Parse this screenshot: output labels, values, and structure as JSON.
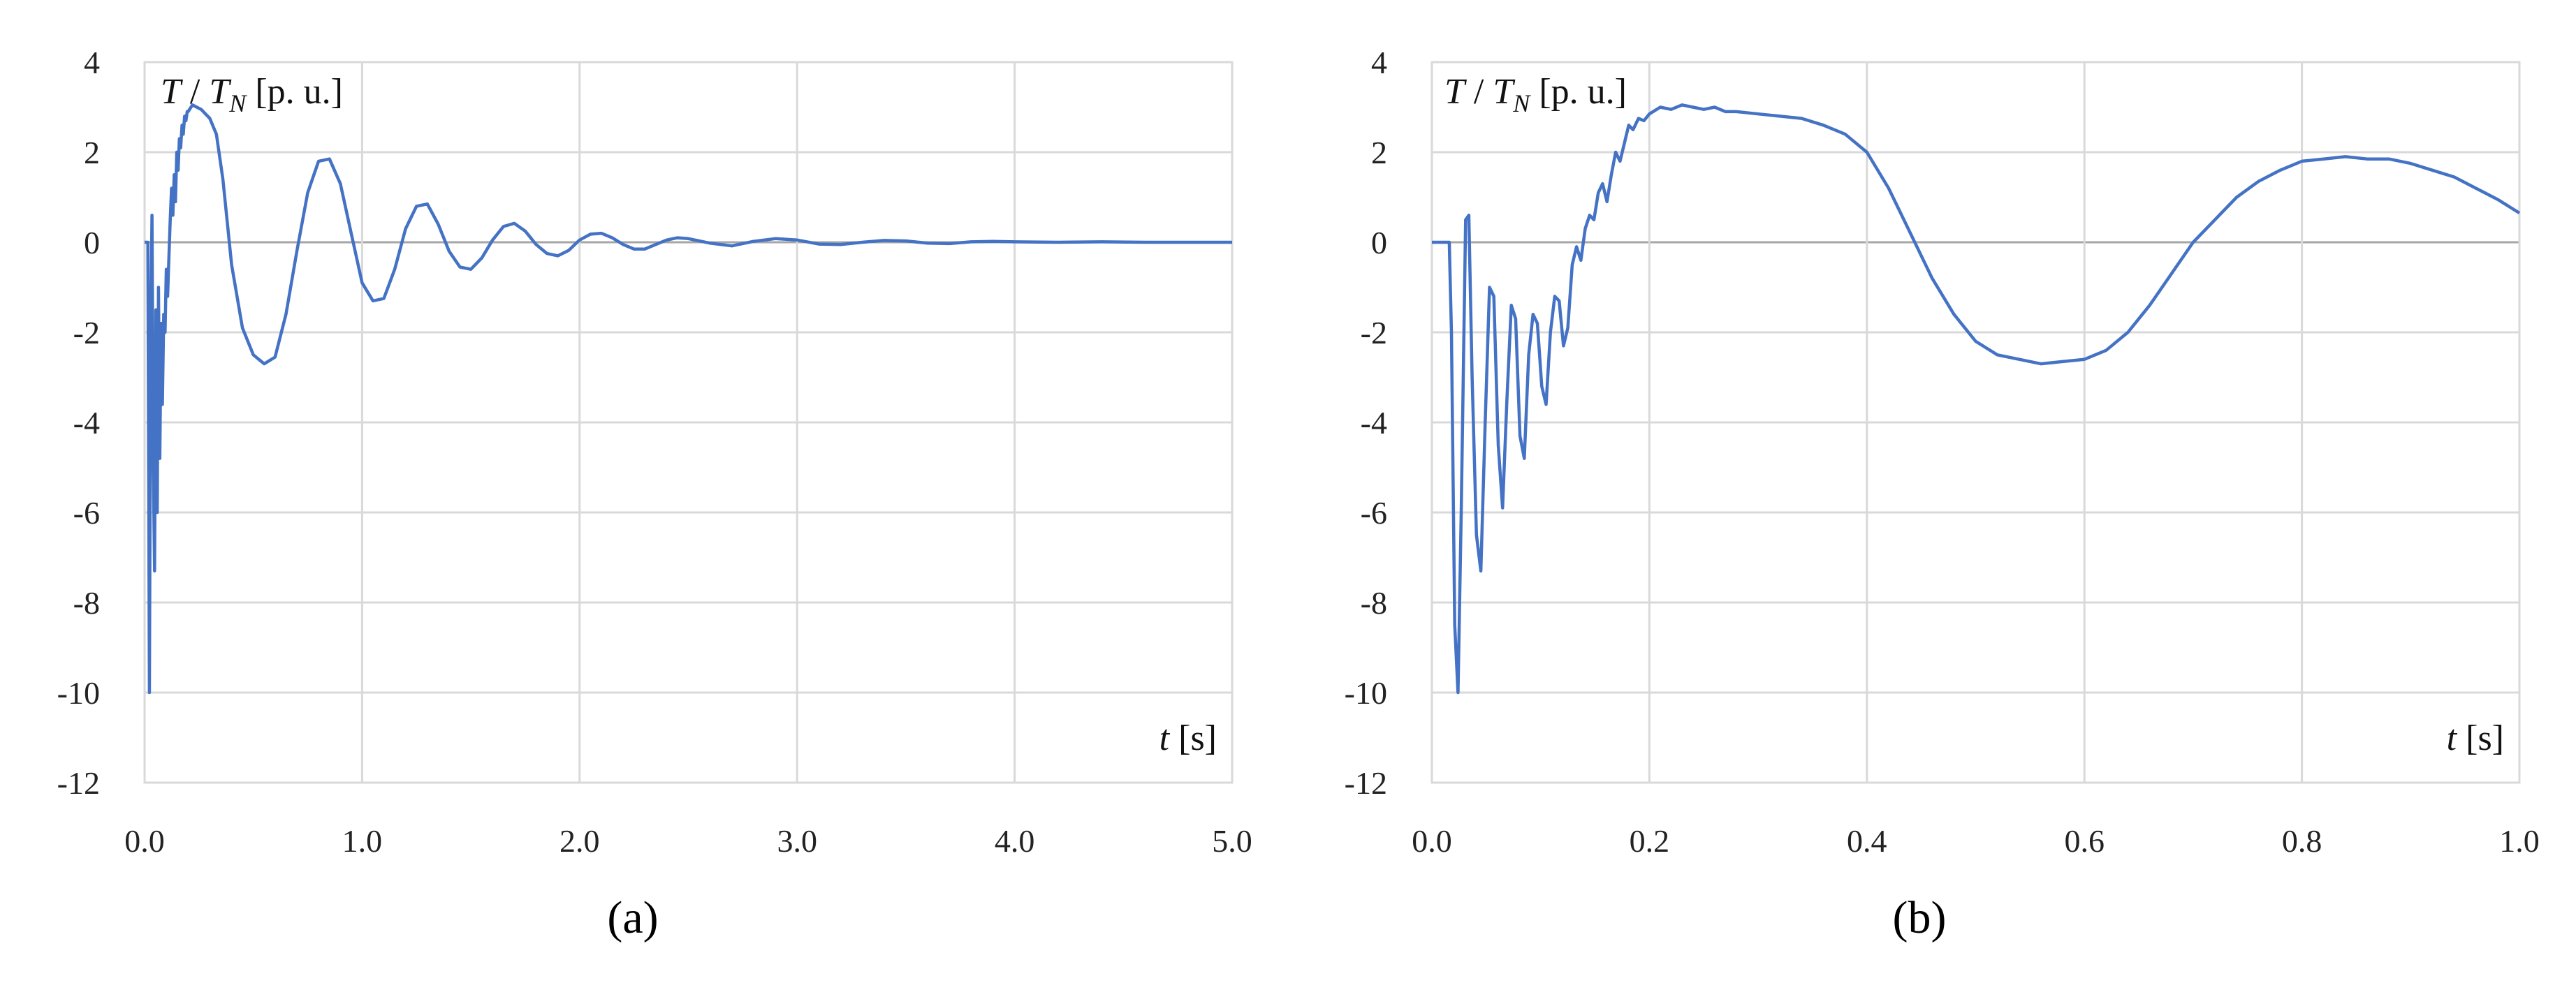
{
  "chart_data": [
    {
      "type": "line",
      "panel_label": "(a)",
      "ylabel": "T / T_N [p. u.]",
      "ylabel_parts": {
        "t": "T",
        "slash": " / ",
        "tn": "T",
        "sub": "N",
        "unit": " [p. u.]"
      },
      "xlabel": "t [s]",
      "xlabel_parts": {
        "var": "t",
        "unit": " [s]"
      },
      "xlim": [
        0,
        5
      ],
      "ylim": [
        -12,
        4
      ],
      "xticks": [
        "0.0",
        "1.0",
        "2.0",
        "3.0",
        "4.0",
        "5.0"
      ],
      "xtick_values": [
        0,
        1,
        2,
        3,
        4,
        5
      ],
      "yticks": [
        "4",
        "2",
        "0",
        "-2",
        "-4",
        "-6",
        "-8",
        "-10",
        "-12"
      ],
      "ytick_values": [
        4,
        2,
        0,
        -2,
        -4,
        -6,
        -8,
        -10,
        -12
      ],
      "grid": true,
      "legend": "none",
      "series": [
        {
          "x": [
            0,
            0.015,
            0.022,
            0.028,
            0.034,
            0.04,
            0.046,
            0.052,
            0.058,
            0.064,
            0.07,
            0.076,
            0.082,
            0.088,
            0.094,
            0.1,
            0.106,
            0.112,
            0.118,
            0.124,
            0.13,
            0.136,
            0.142,
            0.148,
            0.154,
            0.16,
            0.166,
            0.172,
            0.178,
            0.184,
            0.19,
            0.196,
            0.2,
            0.22,
            0.24,
            0.26,
            0.28,
            0.3,
            0.33,
            0.36,
            0.4,
            0.45,
            0.5,
            0.55,
            0.6,
            0.65,
            0.7,
            0.75,
            0.8,
            0.85,
            0.9,
            0.95,
            1.0,
            1.05,
            1.1,
            1.15,
            1.2,
            1.25,
            1.3,
            1.35,
            1.4,
            1.45,
            1.5,
            1.55,
            1.6,
            1.65,
            1.7,
            1.75,
            1.8,
            1.85,
            1.9,
            1.95,
            2.0,
            2.05,
            2.1,
            2.15,
            2.2,
            2.25,
            2.3,
            2.35,
            2.4,
            2.45,
            2.5,
            2.6,
            2.7,
            2.8,
            2.9,
            3.0,
            3.1,
            3.2,
            3.3,
            3.4,
            3.5,
            3.6,
            3.7,
            3.8,
            3.9,
            4.0,
            4.2,
            4.4,
            4.6,
            4.8,
            5.0
          ],
          "values": [
            0,
            0,
            -10,
            -2,
            0.6,
            -5,
            -7.3,
            -1.5,
            -6,
            -1,
            -4.8,
            -1.8,
            -3.6,
            -1.6,
            -2.0,
            -0.6,
            -1.2,
            -0.3,
            0.5,
            1.2,
            0.6,
            1.5,
            0.9,
            2.0,
            1.6,
            2.3,
            2.1,
            2.6,
            2.4,
            2.8,
            2.7,
            2.9,
            2.9,
            3.05,
            3.0,
            2.95,
            2.85,
            2.75,
            2.4,
            1.4,
            -0.5,
            -1.9,
            -2.5,
            -2.7,
            -2.55,
            -1.6,
            -0.2,
            1.1,
            1.8,
            1.85,
            1.3,
            0.2,
            -0.9,
            -1.3,
            -1.25,
            -0.6,
            0.3,
            0.8,
            0.85,
            0.4,
            -0.2,
            -0.55,
            -0.6,
            -0.35,
            0.05,
            0.35,
            0.42,
            0.25,
            -0.05,
            -0.25,
            -0.3,
            -0.18,
            0.05,
            0.18,
            0.2,
            0.1,
            -0.05,
            -0.15,
            -0.15,
            -0.05,
            0.05,
            0.1,
            0.08,
            -0.02,
            -0.08,
            0.02,
            0.08,
            0.05,
            -0.04,
            -0.05,
            0.0,
            0.04,
            0.03,
            -0.02,
            -0.03,
            0.01,
            0.02,
            0.01,
            0.0,
            0.01,
            0.0,
            0.0,
            0.0
          ]
        }
      ]
    },
    {
      "type": "line",
      "panel_label": "(b)",
      "ylabel": "T / T_N [p. u.]",
      "ylabel_parts": {
        "t": "T",
        "slash": " / ",
        "tn": "T",
        "sub": "N",
        "unit": " [p. u.]"
      },
      "xlabel": "t [s]",
      "xlabel_parts": {
        "var": "t",
        "unit": " [s]"
      },
      "xlim": [
        0,
        1
      ],
      "ylim": [
        -12,
        4
      ],
      "xticks": [
        "0.0",
        "0.2",
        "0.4",
        "0.6",
        "0.8",
        "1.0"
      ],
      "xtick_values": [
        0,
        0.2,
        0.4,
        0.6,
        0.8,
        1.0
      ],
      "yticks": [
        "4",
        "2",
        "0",
        "-2",
        "-4",
        "-6",
        "-8",
        "-10",
        "-12"
      ],
      "ytick_values": [
        4,
        2,
        0,
        -2,
        -4,
        -6,
        -8,
        -10,
        -12
      ],
      "grid": true,
      "legend": "none",
      "series": [
        {
          "x": [
            0,
            0.016,
            0.018,
            0.021,
            0.024,
            0.027,
            0.031,
            0.034,
            0.037,
            0.041,
            0.045,
            0.049,
            0.053,
            0.057,
            0.061,
            0.065,
            0.069,
            0.073,
            0.077,
            0.081,
            0.085,
            0.089,
            0.093,
            0.097,
            0.101,
            0.105,
            0.109,
            0.113,
            0.117,
            0.121,
            0.125,
            0.129,
            0.133,
            0.137,
            0.141,
            0.145,
            0.149,
            0.153,
            0.157,
            0.161,
            0.165,
            0.169,
            0.173,
            0.177,
            0.181,
            0.185,
            0.19,
            0.195,
            0.2,
            0.21,
            0.22,
            0.23,
            0.24,
            0.25,
            0.26,
            0.27,
            0.28,
            0.3,
            0.32,
            0.34,
            0.36,
            0.38,
            0.4,
            0.42,
            0.44,
            0.46,
            0.48,
            0.5,
            0.52,
            0.54,
            0.56,
            0.58,
            0.6,
            0.62,
            0.64,
            0.66,
            0.68,
            0.7,
            0.72,
            0.74,
            0.76,
            0.78,
            0.8,
            0.82,
            0.84,
            0.86,
            0.88,
            0.9,
            0.92,
            0.94,
            0.96,
            0.98,
            1.0
          ],
          "values": [
            0,
            0,
            -2,
            -8.5,
            -10,
            -6,
            0.5,
            0.6,
            -3,
            -6.5,
            -7.3,
            -4,
            -1,
            -1.2,
            -4.5,
            -5.9,
            -3.5,
            -1.4,
            -1.7,
            -4.3,
            -4.8,
            -2.5,
            -1.6,
            -1.8,
            -3.2,
            -3.6,
            -2.0,
            -1.2,
            -1.3,
            -2.3,
            -1.9,
            -0.5,
            -0.1,
            -0.4,
            0.3,
            0.6,
            0.5,
            1.1,
            1.3,
            0.9,
            1.5,
            2.0,
            1.8,
            2.2,
            2.6,
            2.5,
            2.75,
            2.7,
            2.85,
            3.0,
            2.95,
            3.05,
            3.0,
            2.95,
            3.0,
            2.9,
            2.9,
            2.85,
            2.8,
            2.75,
            2.6,
            2.4,
            2.0,
            1.2,
            0.2,
            -0.8,
            -1.6,
            -2.2,
            -2.5,
            -2.6,
            -2.7,
            -2.65,
            -2.6,
            -2.4,
            -2.0,
            -1.4,
            -0.7,
            0.0,
            0.5,
            1.0,
            1.35,
            1.6,
            1.8,
            1.85,
            1.9,
            1.85,
            1.85,
            1.75,
            1.6,
            1.45,
            1.2,
            0.95,
            0.65
          ]
        }
      ]
    }
  ]
}
